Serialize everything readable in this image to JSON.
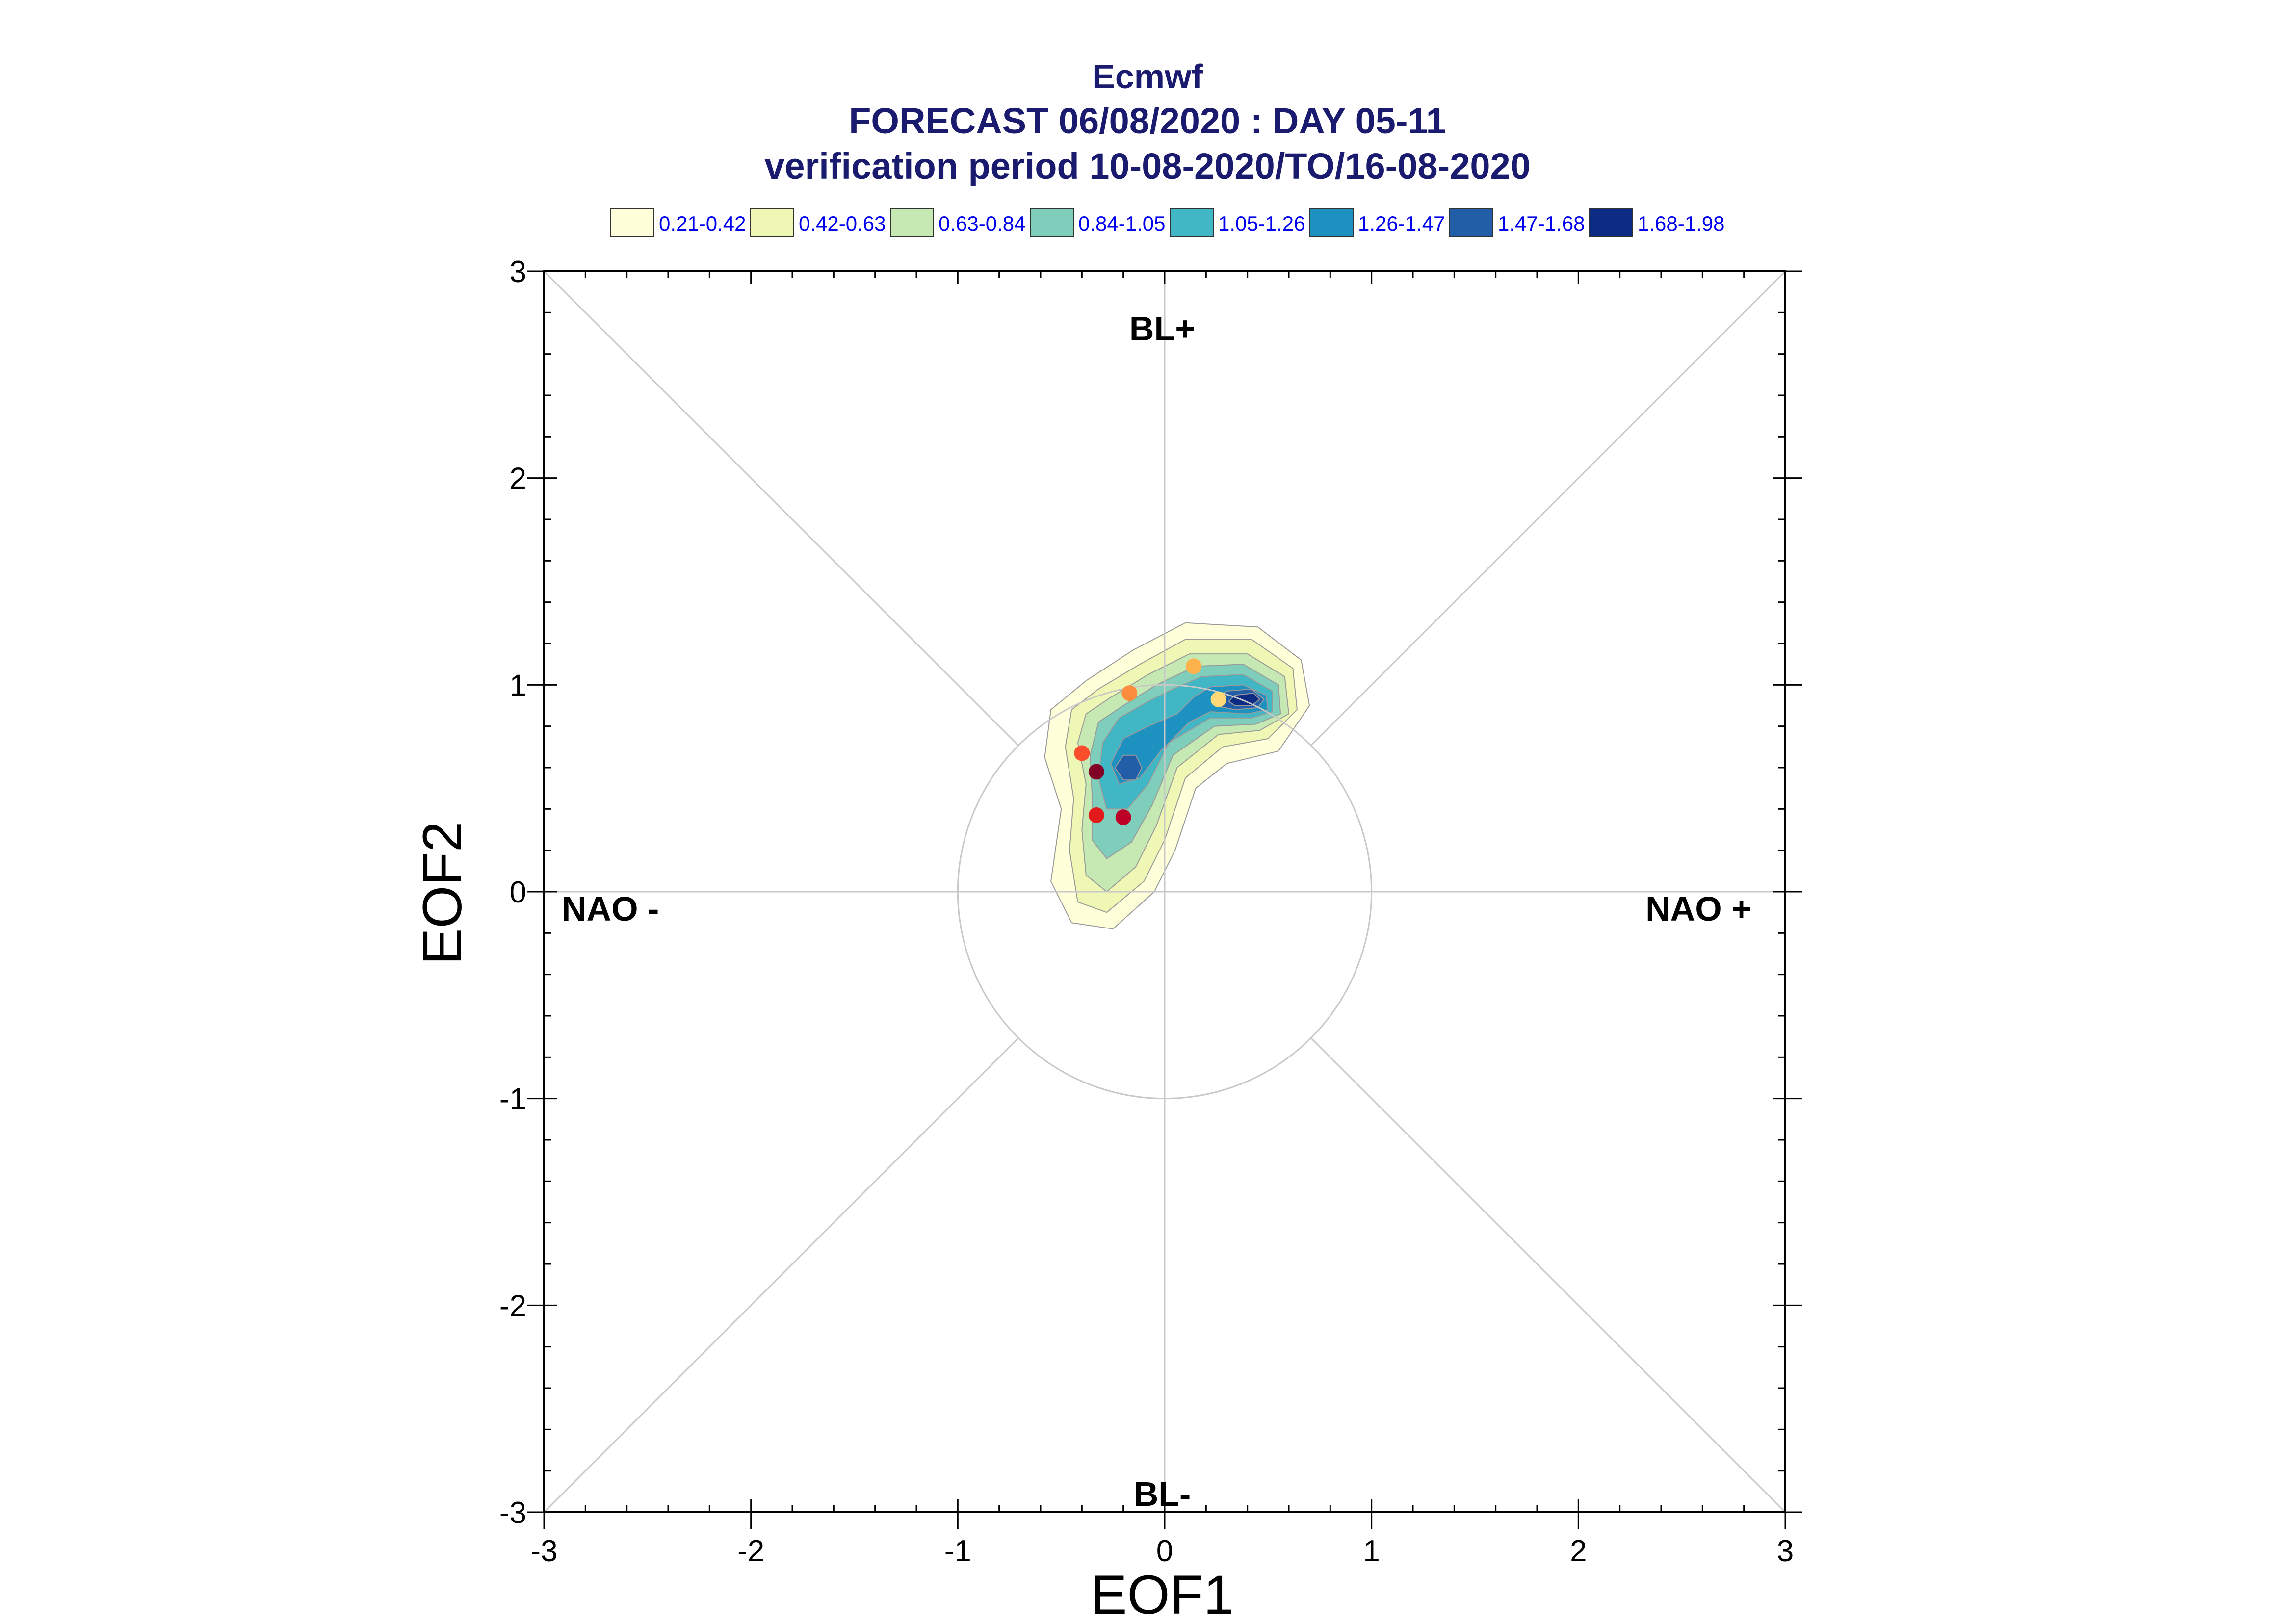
{
  "titles": [
    "Ecmwf",
    "FORECAST 06/08/2020 : DAY 05-11",
    "verification period 10-08-2020/TO/16-08-2020"
  ],
  "legend": [
    {
      "label": "0.21-0.42",
      "color": "#ffffd9"
    },
    {
      "label": "0.42-0.63",
      "color": "#eef8b4"
    },
    {
      "label": "0.63-0.84",
      "color": "#c6e9b4"
    },
    {
      "label": "0.84-1.05",
      "color": "#7fcdbb"
    },
    {
      "label": "1.05-1.26",
      "color": "#41b6c4"
    },
    {
      "label": "1.26-1.47",
      "color": "#1d91c0"
    },
    {
      "label": "1.47-1.68",
      "color": "#225ea8"
    },
    {
      "label": "1.68-1.98",
      "color": "#0c2c84"
    }
  ],
  "regime_labels": {
    "top": "BL+",
    "bottom": "BL-",
    "left": "NAO -",
    "right": "NAO +"
  },
  "chart_data": {
    "type": "scatter",
    "xlabel": "EOF1",
    "ylabel": "EOF2",
    "xlim": [
      -3,
      3
    ],
    "ylim": [
      -3,
      3
    ],
    "xticks": [
      "-3",
      "-2",
      "-1",
      "0",
      "1",
      "2",
      "3"
    ],
    "yticks": [
      "-3",
      "-2",
      "-1",
      "0",
      "1",
      "2",
      "3"
    ],
    "unit_circle_radius": 1,
    "points": [
      {
        "x": 0.26,
        "y": 0.93,
        "color": "#fed976"
      },
      {
        "x": 0.14,
        "y": 1.09,
        "color": "#feb24c"
      },
      {
        "x": -0.17,
        "y": 0.96,
        "color": "#fd8d3c"
      },
      {
        "x": -0.4,
        "y": 0.67,
        "color": "#fc4e2a"
      },
      {
        "x": -0.33,
        "y": 0.58,
        "color": "#800026"
      },
      {
        "x": -0.33,
        "y": 0.37,
        "color": "#e31a1c"
      },
      {
        "x": -0.2,
        "y": 0.36,
        "color": "#bd0026"
      }
    ],
    "density_contours": [
      {
        "level": "0.21-0.42",
        "color": "#ffffd9",
        "polygon": [
          [
            0.1,
            1.3
          ],
          [
            0.45,
            1.28
          ],
          [
            0.66,
            1.12
          ],
          [
            0.7,
            0.9
          ],
          [
            0.55,
            0.68
          ],
          [
            0.3,
            0.62
          ],
          [
            0.15,
            0.5
          ],
          [
            0.05,
            0.2
          ],
          [
            -0.05,
            0.0
          ],
          [
            -0.25,
            -0.18
          ],
          [
            -0.45,
            -0.15
          ],
          [
            -0.55,
            0.05
          ],
          [
            -0.5,
            0.4
          ],
          [
            -0.58,
            0.65
          ],
          [
            -0.55,
            0.88
          ],
          [
            -0.38,
            1.02
          ],
          [
            -0.15,
            1.17
          ]
        ]
      },
      {
        "level": "0.42-0.63",
        "color": "#eef8b4",
        "polygon": [
          [
            0.1,
            1.22
          ],
          [
            0.42,
            1.22
          ],
          [
            0.62,
            1.08
          ],
          [
            0.64,
            0.88
          ],
          [
            0.5,
            0.74
          ],
          [
            0.28,
            0.7
          ],
          [
            0.1,
            0.55
          ],
          [
            0.0,
            0.25
          ],
          [
            -0.1,
            0.05
          ],
          [
            -0.28,
            -0.1
          ],
          [
            -0.42,
            -0.05
          ],
          [
            -0.46,
            0.2
          ],
          [
            -0.44,
            0.45
          ],
          [
            -0.48,
            0.7
          ],
          [
            -0.45,
            0.88
          ],
          [
            -0.32,
            0.98
          ],
          [
            -0.12,
            1.1
          ]
        ]
      },
      {
        "level": "0.63-0.84",
        "color": "#c6e9b4",
        "polygon": [
          [
            0.12,
            1.15
          ],
          [
            0.4,
            1.15
          ],
          [
            0.58,
            1.04
          ],
          [
            0.6,
            0.86
          ],
          [
            0.46,
            0.78
          ],
          [
            0.26,
            0.76
          ],
          [
            0.06,
            0.6
          ],
          [
            -0.04,
            0.32
          ],
          [
            -0.14,
            0.12
          ],
          [
            -0.28,
            0.0
          ],
          [
            -0.38,
            0.08
          ],
          [
            -0.4,
            0.3
          ],
          [
            -0.38,
            0.52
          ],
          [
            -0.42,
            0.72
          ],
          [
            -0.38,
            0.86
          ],
          [
            -0.26,
            0.94
          ],
          [
            -0.08,
            1.05
          ]
        ]
      },
      {
        "level": "0.84-1.05",
        "color": "#7fcdbb",
        "polygon": [
          [
            0.15,
            1.09
          ],
          [
            0.38,
            1.1
          ],
          [
            0.55,
            1.0
          ],
          [
            0.56,
            0.86
          ],
          [
            0.44,
            0.81
          ],
          [
            0.24,
            0.8
          ],
          [
            0.04,
            0.66
          ],
          [
            -0.06,
            0.42
          ],
          [
            -0.16,
            0.24
          ],
          [
            -0.28,
            0.16
          ],
          [
            -0.35,
            0.25
          ],
          [
            -0.35,
            0.45
          ],
          [
            -0.36,
            0.66
          ],
          [
            -0.32,
            0.82
          ],
          [
            -0.2,
            0.9
          ],
          [
            -0.04,
            1.0
          ]
        ]
      },
      {
        "level": "1.05-1.26",
        "color": "#41b6c4",
        "polygon": [
          [
            0.18,
            1.04
          ],
          [
            0.38,
            1.05
          ],
          [
            0.52,
            0.97
          ],
          [
            0.52,
            0.87
          ],
          [
            0.42,
            0.84
          ],
          [
            0.22,
            0.84
          ],
          [
            0.02,
            0.72
          ],
          [
            -0.08,
            0.52
          ],
          [
            -0.18,
            0.4
          ],
          [
            -0.28,
            0.4
          ],
          [
            -0.32,
            0.55
          ],
          [
            -0.3,
            0.72
          ],
          [
            -0.22,
            0.84
          ],
          [
            -0.08,
            0.92
          ],
          [
            0.04,
            0.98
          ]
        ]
      },
      {
        "level": "1.26-1.47",
        "color": "#1d91c0",
        "polygon": [
          [
            0.22,
            0.99
          ],
          [
            0.38,
            1.0
          ],
          [
            0.49,
            0.95
          ],
          [
            0.5,
            0.88
          ],
          [
            0.4,
            0.86
          ],
          [
            0.22,
            0.87
          ],
          [
            0.12,
            0.82
          ],
          [
            -0.02,
            0.68
          ],
          [
            -0.12,
            0.55
          ],
          [
            -0.22,
            0.52
          ],
          [
            -0.26,
            0.62
          ],
          [
            -0.2,
            0.74
          ],
          [
            -0.08,
            0.8
          ],
          [
            0.06,
            0.86
          ],
          [
            0.14,
            0.94
          ]
        ]
      },
      {
        "level": "1.47-1.68",
        "color": "#225ea8",
        "polygon": [
          [
            0.3,
            0.97
          ],
          [
            0.42,
            0.98
          ],
          [
            0.48,
            0.93
          ],
          [
            0.45,
            0.89
          ],
          [
            0.34,
            0.88
          ],
          [
            0.24,
            0.9
          ],
          [
            0.26,
            0.95
          ]
        ]
      },
      {
        "level": "1.47-1.68",
        "color": "#225ea8",
        "polygon": [
          [
            -0.2,
            0.66
          ],
          [
            -0.14,
            0.66
          ],
          [
            -0.11,
            0.6
          ],
          [
            -0.14,
            0.54
          ],
          [
            -0.2,
            0.54
          ],
          [
            -0.24,
            0.6
          ]
        ]
      },
      {
        "level": "1.68-1.98",
        "color": "#0c2c84",
        "polygon": [
          [
            0.34,
            0.95
          ],
          [
            0.43,
            0.96
          ],
          [
            0.46,
            0.93
          ],
          [
            0.42,
            0.9
          ],
          [
            0.34,
            0.9
          ],
          [
            0.31,
            0.92
          ]
        ]
      }
    ]
  }
}
